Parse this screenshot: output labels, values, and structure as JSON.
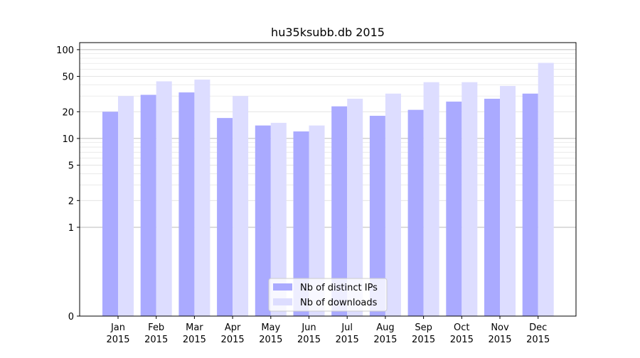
{
  "chart_data": {
    "type": "bar",
    "title": "hu35ksubb.db 2015",
    "xlabel": "",
    "ylabel": "",
    "y_scale": "symlog",
    "ylim": [
      0,
      120
    ],
    "y_ticks": [
      0,
      1,
      2,
      5,
      10,
      20,
      50,
      100
    ],
    "grid": "horizontal",
    "legend_position": "bottom-center",
    "categories": [
      [
        "Jan",
        "2015"
      ],
      [
        "Feb",
        "2015"
      ],
      [
        "Mar",
        "2015"
      ],
      [
        "Apr",
        "2015"
      ],
      [
        "May",
        "2015"
      ],
      [
        "Jun",
        "2015"
      ],
      [
        "Jul",
        "2015"
      ],
      [
        "Aug",
        "2015"
      ],
      [
        "Sep",
        "2015"
      ],
      [
        "Oct",
        "2015"
      ],
      [
        "Nov",
        "2015"
      ],
      [
        "Dec",
        "2015"
      ]
    ],
    "series": [
      {
        "name": "Nb of distinct IPs",
        "color": "#aaaaff",
        "values": [
          20,
          31,
          33,
          17,
          14,
          12,
          23,
          18,
          21,
          26,
          28,
          32
        ]
      },
      {
        "name": "Nb of downloads",
        "color": "#ddddff",
        "values": [
          30,
          44,
          46,
          30,
          15,
          14,
          28,
          32,
          43,
          43,
          39,
          71
        ]
      }
    ]
  }
}
